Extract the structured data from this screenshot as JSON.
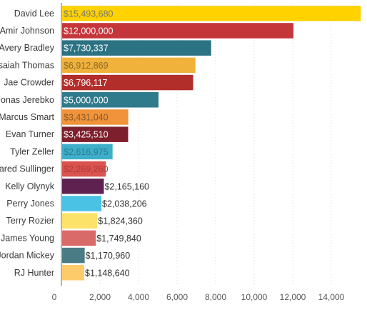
{
  "chart_data": {
    "type": "bar",
    "orientation": "horizontal",
    "title": "",
    "xlabel": "",
    "ylabel": "",
    "xlim": [
      0,
      16000
    ],
    "grid": true,
    "categories": [
      "David Lee",
      "Amir Johnson",
      "Avery Bradley",
      "Isaiah Thomas",
      "Jae Crowder",
      "Jonas Jerebko",
      "Marcus Smart",
      "Evan Turner",
      "Tyler Zeller",
      "Jared Sullinger",
      "Kelly Olynyk",
      "Perry Jones",
      "Terry Rozier",
      "James Young",
      "Jordan Mickey",
      "RJ Hunter"
    ],
    "values": [
      15493680,
      12000000,
      7730337,
      6912869,
      6796117,
      5000000,
      3431040,
      3425510,
      2616975,
      2269260,
      2165160,
      2038206,
      1824360,
      1749840,
      1170960,
      1148640
    ],
    "value_labels": [
      "$15,493,680",
      "$12,000,000",
      "$7,730,337",
      "$6,912,869",
      "$6,796,117",
      "$5,000,000",
      "$3,431,040",
      "$3,425,510",
      "$2,616,975",
      "$2,269,260",
      "$2,165,160",
      "$2,038,206",
      "$1,824,360",
      "$1,749,840",
      "$1,170,960",
      "$1,148,640"
    ],
    "colors": [
      "#ffd200",
      "#c5363b",
      "#2b7283",
      "#f0b23b",
      "#b22e2b",
      "#2f7a8b",
      "#f0933a",
      "#7d1f2c",
      "#3eaec9",
      "#d9534f",
      "#5e2150",
      "#49c2e3",
      "#fde26a",
      "#d96a6a",
      "#4a7c85",
      "#fecb6b"
    ],
    "label_colors": [
      "#777777",
      "#ffffff",
      "#ffffff",
      "#8a6a2a",
      "#ffffff",
      "#ffffff",
      "#8a5a2a",
      "#ffffff",
      "#2a7c93",
      "#b03a3a",
      "#333333",
      "#333333",
      "#333333",
      "#333333",
      "#333333",
      "#333333"
    ],
    "x_ticks": [
      0,
      2000,
      4000,
      6000,
      8000,
      10000,
      12000,
      14000
    ],
    "x_tick_labels": [
      "0",
      "2,000",
      "4,000",
      "6,000",
      "8,000",
      "10,000",
      "12,000",
      "14,000"
    ]
  }
}
